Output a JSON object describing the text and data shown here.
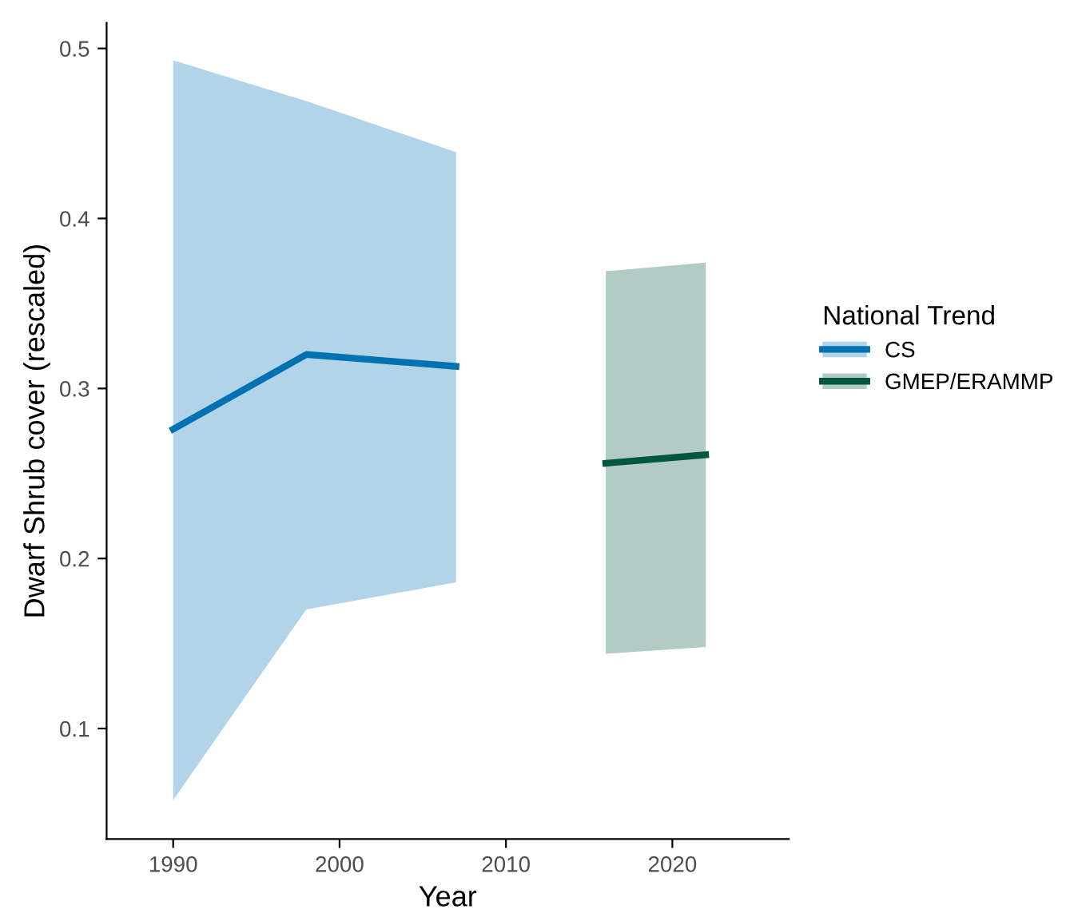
{
  "chart_data": {
    "type": "line",
    "xlabel": "Year",
    "ylabel": "Dwarf Shrub cover (rescaled)",
    "legend_title": "National Trend",
    "legend": "right",
    "grid": false,
    "marker": "none",
    "line_style": "solid",
    "xlim": [
      1986,
      2027
    ],
    "xticks": [
      1990,
      2000,
      2010,
      2020
    ],
    "ylim": [
      0.035,
      0.515
    ],
    "yticks": [
      0.1,
      0.2,
      0.3,
      0.4,
      0.5
    ],
    "series": [
      {
        "name": "CS",
        "color": "#0072b2",
        "x": [
          1990,
          1998,
          2007
        ],
        "values": [
          0.276,
          0.32,
          0.313
        ],
        "lower": [
          0.058,
          0.17,
          0.186
        ],
        "upper": [
          0.493,
          0.469,
          0.439
        ]
      },
      {
        "name": "GMEP/ERAMMP",
        "color": "#00573f",
        "x": [
          2016,
          2022
        ],
        "values": [
          0.256,
          0.261
        ],
        "lower": [
          0.144,
          0.148
        ],
        "upper": [
          0.369,
          0.374
        ]
      }
    ]
  }
}
